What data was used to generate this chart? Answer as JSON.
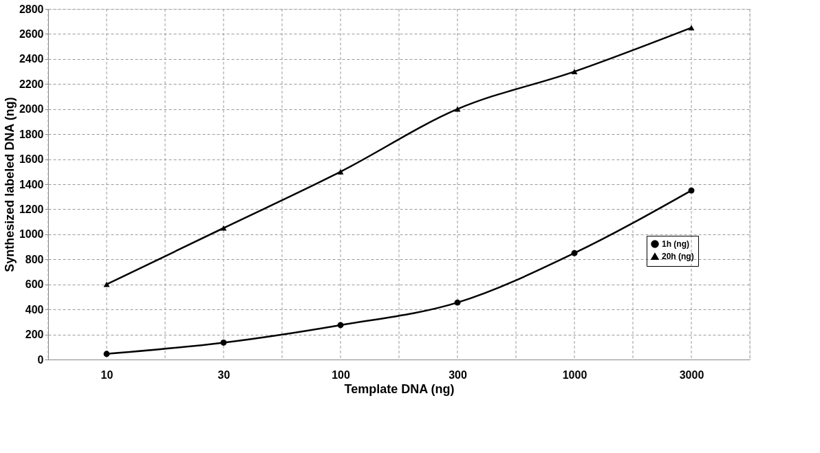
{
  "chart_data": {
    "type": "line",
    "xlabel": "Template DNA (ng)",
    "ylabel": "Synthesized labeled DNA (ng)",
    "categories": [
      "10",
      "30",
      "100",
      "300",
      "1000",
      "3000"
    ],
    "series": [
      {
        "name": "1h (ng)",
        "color": "#000000",
        "marker": "circle",
        "values": [
          45,
          135,
          275,
          455,
          850,
          1350
        ]
      },
      {
        "name": "20h (ng)",
        "color": "#000000",
        "marker": "triangle",
        "values": [
          600,
          1050,
          1500,
          2000,
          2300,
          2650
        ]
      }
    ],
    "ylim": [
      0,
      2800
    ],
    "yticks": [
      0,
      200,
      400,
      600,
      800,
      1000,
      1200,
      1400,
      1600,
      1800,
      2000,
      2200,
      2400,
      2600,
      2800
    ],
    "grid": true,
    "legend": "right",
    "line_style": "solid"
  }
}
